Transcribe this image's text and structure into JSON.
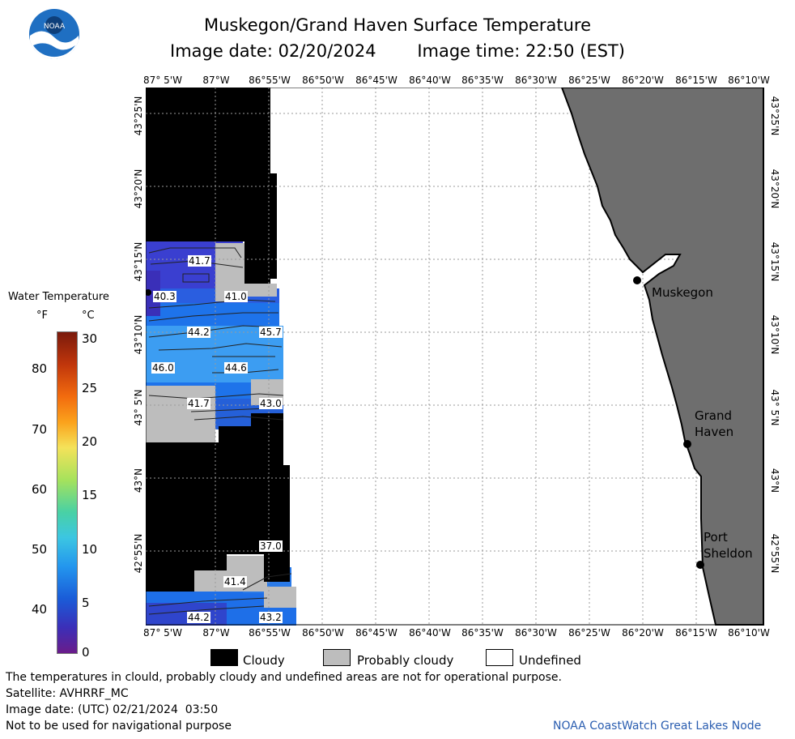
{
  "header": {
    "title": "Muskegon/Grand Haven Surface Temperature",
    "image_date": "Image date: 02/20/2024",
    "image_time": "Image time: 22:50 (EST)",
    "logo_text": "NOAA"
  },
  "map": {
    "lon_labels": [
      "87° 5'W",
      "87°W",
      "86°55'W",
      "86°50'W",
      "86°45'W",
      "86°40'W",
      "86°35'W",
      "86°30'W",
      "86°25'W",
      "86°20'W",
      "86°15'W",
      "86°10'W"
    ],
    "lat_labels": [
      "43°25'N",
      "43°20'N",
      "43°15'N",
      "43°10'N",
      "43° 5'N",
      "43°N",
      "42°55'N"
    ],
    "places": {
      "muskegon": "Muskegon",
      "grand_haven": "Grand\nHaven",
      "port_sheldon": "Port\nSheldon"
    },
    "contour_labels": [
      "41.7",
      "40.3",
      "41.0",
      "44.2",
      "45.7",
      "46.0",
      "44.6",
      "41.7",
      "43.0",
      "37.0",
      "41.4",
      "44.2",
      "43.2"
    ],
    "colors": {
      "land": "#6e6e6e",
      "cloudy": "#000000",
      "probably_cloudy": "#bdbdbd",
      "undefined": "#ffffff"
    }
  },
  "scale": {
    "title": "Water Temperature",
    "f_unit": "°F",
    "c_unit": "°C",
    "f_ticks": [
      "80",
      "70",
      "60",
      "50",
      "40"
    ],
    "c_ticks": [
      "30",
      "25",
      "20",
      "15",
      "10",
      "5",
      "0"
    ]
  },
  "legend": {
    "cloudy": "Cloudy",
    "probably_cloudy": "Probably cloudy",
    "undefined": "Undefined"
  },
  "footer": {
    "disclaimer": "The temperatures in clould, probably cloudy and undefined areas are not for operational purpose.",
    "satellite": "Satellite: AVHRRF_MC",
    "utc_date": "Image date: (UTC) 02/21/2024  03:50",
    "nav_warning": "Not to be used for navigational purpose",
    "credit": "NOAA CoastWatch Great Lakes Node"
  }
}
